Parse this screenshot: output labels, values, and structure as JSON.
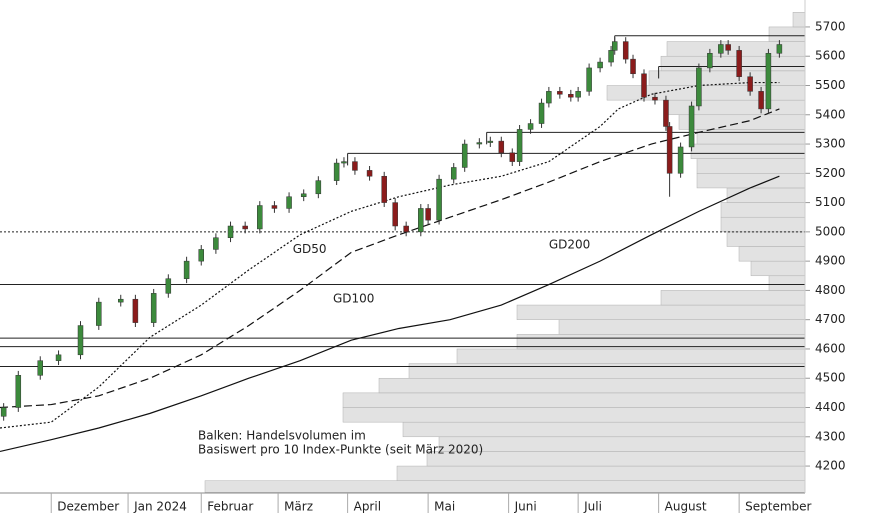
{
  "chart_data": {
    "type": "candlestick",
    "xlim": [
      0,
      220
    ],
    "xticks": [
      {
        "value": 14,
        "label": "Dezember"
      },
      {
        "value": 35,
        "label": "Jan 2024"
      },
      {
        "value": 55,
        "label": "Februar"
      },
      {
        "value": 76,
        "label": "März"
      },
      {
        "value": 95,
        "label": "April"
      },
      {
        "value": 117,
        "label": "Mai"
      },
      {
        "value": 139,
        "label": "Juni"
      },
      {
        "value": 158,
        "label": "Juli"
      },
      {
        "value": 180,
        "label": "August"
      },
      {
        "value": 202,
        "label": "September"
      }
    ],
    "ylim": [
      4108,
      5792
    ],
    "yticks": [
      4200,
      4300,
      4400,
      4500,
      4600,
      4700,
      4800,
      4900,
      5000,
      5100,
      5200,
      5300,
      5400,
      5500,
      5600,
      5700
    ],
    "up_color": "#3c8a3c",
    "down_color": "#8b1c1c",
    "x": [
      1,
      5,
      11,
      16,
      22,
      27,
      33,
      37,
      42,
      46,
      51,
      55,
      59,
      63,
      67,
      71,
      75,
      79,
      83,
      87,
      92,
      94,
      97,
      101,
      105,
      108,
      111,
      115,
      117,
      120,
      124,
      127,
      131,
      134,
      137,
      140,
      142,
      145,
      148,
      150,
      153,
      156,
      158,
      161,
      164,
      167,
      168,
      171,
      173,
      176,
      179,
      182,
      183,
      186,
      189,
      191,
      194,
      197,
      199,
      202,
      205,
      208,
      210,
      213
    ],
    "open": [
      4370,
      4400,
      4510,
      4560,
      4580,
      4680,
      4760,
      4770,
      4690,
      4790,
      4840,
      4900,
      4940,
      4980,
      5020,
      5010,
      5090,
      5080,
      5120,
      5130,
      5175,
      5235,
      5240,
      5210,
      5190,
      5100,
      5020,
      5000,
      5080,
      5040,
      5180,
      5220,
      5300,
      5305,
      5310,
      5270,
      5240,
      5350,
      5370,
      5440,
      5480,
      5470,
      5460,
      5480,
      5560,
      5580,
      5620,
      5650,
      5590,
      5540,
      5460,
      5450,
      5360,
      5200,
      5290,
      5430,
      5560,
      5610,
      5640,
      5620,
      5530,
      5480,
      5420,
      5610
    ],
    "high": [
      4415,
      4525,
      4575,
      4595,
      4695,
      4775,
      4785,
      4785,
      4805,
      4855,
      4915,
      4955,
      4995,
      5035,
      5035,
      5105,
      5105,
      5135,
      5145,
      5190,
      5250,
      5255,
      5255,
      5225,
      5205,
      5115,
      5035,
      5095,
      5095,
      5195,
      5235,
      5315,
      5320,
      5325,
      5325,
      5285,
      5365,
      5385,
      5455,
      5495,
      5495,
      5485,
      5495,
      5575,
      5595,
      5635,
      5665,
      5665,
      5605,
      5555,
      5475,
      5465,
      5375,
      5305,
      5445,
      5575,
      5625,
      5655,
      5655,
      5635,
      5545,
      5495,
      5625,
      5655
    ],
    "low": [
      4355,
      4385,
      4495,
      4545,
      4565,
      4665,
      4745,
      4675,
      4675,
      4775,
      4825,
      4885,
      4925,
      4965,
      4995,
      4995,
      5065,
      5065,
      5105,
      5115,
      5160,
      5220,
      5195,
      5175,
      5085,
      5005,
      4985,
      4985,
      5025,
      5025,
      5165,
      5205,
      5285,
      5290,
      5255,
      5225,
      5225,
      5335,
      5355,
      5425,
      5455,
      5445,
      5445,
      5465,
      5545,
      5565,
      5605,
      5575,
      5525,
      5445,
      5435,
      5345,
      5120,
      5185,
      5275,
      5415,
      5545,
      5595,
      5605,
      5515,
      5465,
      5405,
      5405,
      5595
    ],
    "close": [
      4400,
      4510,
      4560,
      4580,
      4680,
      4760,
      4770,
      4690,
      4790,
      4840,
      4900,
      4940,
      4980,
      5020,
      5010,
      5090,
      5080,
      5120,
      5130,
      5175,
      5235,
      5240,
      5210,
      5190,
      5100,
      5020,
      5000,
      5080,
      5040,
      5180,
      5220,
      5300,
      5305,
      5310,
      5270,
      5240,
      5350,
      5370,
      5440,
      5480,
      5470,
      5460,
      5480,
      5560,
      5580,
      5620,
      5650,
      5590,
      5540,
      5460,
      5450,
      5360,
      5200,
      5290,
      5430,
      5560,
      5610,
      5640,
      5620,
      5530,
      5480,
      5420,
      5610,
      5640
    ],
    "moving_averages": [
      {
        "name": "GD50",
        "style": "dotted",
        "x": [
          0,
          14,
          27,
          41,
          55,
          68,
          82,
          96,
          109,
          123,
          137,
          150,
          164,
          169,
          178,
          191,
          205,
          213
        ],
        "values": [
          4330,
          4350,
          4470,
          4640,
          4750,
          4870,
          4990,
          5070,
          5120,
          5160,
          5190,
          5240,
          5360,
          5420,
          5470,
          5500,
          5510,
          5510
        ]
      },
      {
        "name": "GD100",
        "style": "dashed",
        "x": [
          0,
          14,
          27,
          41,
          55,
          68,
          82,
          96,
          109,
          123,
          137,
          150,
          164,
          178,
          191,
          205,
          213
        ],
        "values": [
          4400,
          4410,
          4440,
          4500,
          4580,
          4680,
          4800,
          4930,
          4990,
          5050,
          5110,
          5170,
          5240,
          5300,
          5340,
          5380,
          5420
        ]
      },
      {
        "name": "GD200",
        "style": "solid",
        "x": [
          0,
          14,
          27,
          41,
          55,
          68,
          82,
          96,
          109,
          123,
          137,
          150,
          164,
          178,
          191,
          205,
          213
        ],
        "values": [
          4250,
          4290,
          4330,
          4380,
          4440,
          4500,
          4560,
          4630,
          4670,
          4700,
          4750,
          4820,
          4900,
          4990,
          5070,
          5150,
          5190
        ]
      }
    ],
    "levels": [
      {
        "value": 5670,
        "start": 168
      },
      {
        "value": 5565,
        "start": 180
      },
      {
        "value": 5340,
        "start": 133
      },
      {
        "value": 5268,
        "start": 95
      },
      {
        "value": 5000,
        "start": 0,
        "style": "dotted"
      },
      {
        "value": 4820,
        "start": 0
      },
      {
        "value": 4637,
        "start": 0
      },
      {
        "value": 4608,
        "start": 0
      },
      {
        "value": 4540,
        "start": 0
      }
    ],
    "volume_profile": {
      "bins": [
        4110,
        4150,
        4200,
        4250,
        4300,
        4350,
        4400,
        4450,
        4500,
        4550,
        4600,
        4650,
        4700,
        4750,
        4800,
        4850,
        4900,
        4950,
        5000,
        5050,
        5100,
        5150,
        5200,
        5250,
        5300,
        5350,
        5400,
        5450,
        5500,
        5550,
        5600,
        5650,
        5700,
        5750
      ],
      "values": [
        100,
        68,
        63,
        61,
        67,
        77,
        77,
        71,
        66,
        58,
        48,
        41,
        48,
        24,
        6,
        9,
        11,
        13,
        14,
        14,
        13,
        18,
        18,
        19,
        18,
        21,
        23,
        33,
        26,
        24,
        23,
        6,
        2
      ],
      "max": 100
    },
    "annotations": [
      {
        "text": "GD50",
        "x": 80,
        "y": 4940
      },
      {
        "text": "GD100",
        "x": 91,
        "y": 4770
      },
      {
        "text": "GD200",
        "x": 150,
        "y": 4955
      }
    ],
    "note": [
      "Balken: Handelsvolumen im",
      "Basiswert pro 10 Index-Punkte (seit März 2020)"
    ]
  }
}
